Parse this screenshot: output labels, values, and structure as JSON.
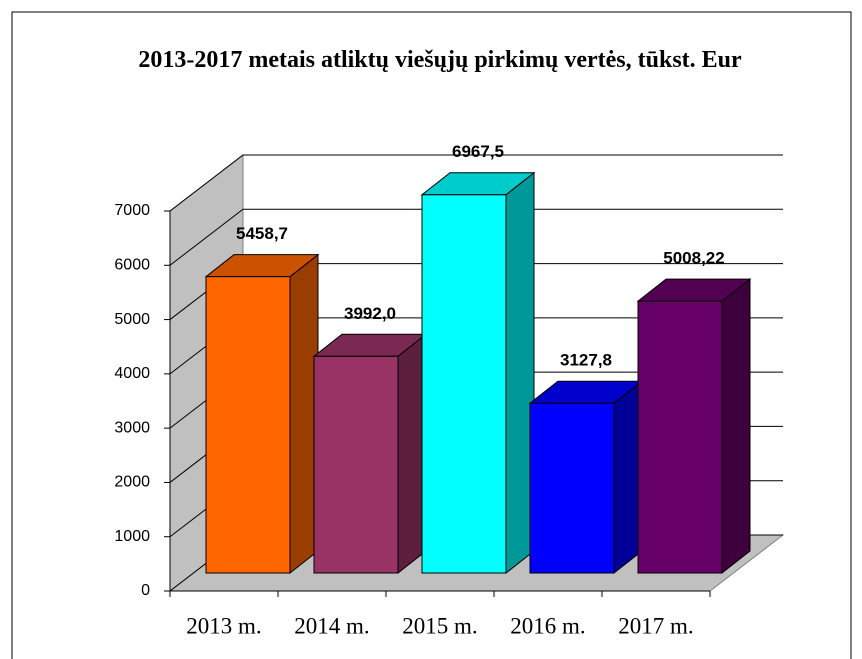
{
  "chart_data": {
    "type": "bar3d",
    "title": "2013-2017 metais atliktų viešųjų pirkimų  vertės, tūkst. Eur",
    "categories": [
      "2013 m.",
      "2014 m.",
      "2015 m.",
      "2016 m.",
      "2017 m."
    ],
    "values": [
      5458.7,
      3992.0,
      6967.5,
      3127.8,
      5008.22
    ],
    "value_labels": [
      "5458,7",
      "3992,0",
      "6967,5",
      "3127,8",
      "5008,22"
    ],
    "colors": [
      "#ff6600",
      "#993366",
      "#00ffff",
      "#0000ff",
      "#660066"
    ],
    "ylim": [
      0,
      7000
    ],
    "yticks": [
      0,
      1000,
      2000,
      3000,
      4000,
      5000,
      6000,
      7000
    ],
    "grid": true
  }
}
